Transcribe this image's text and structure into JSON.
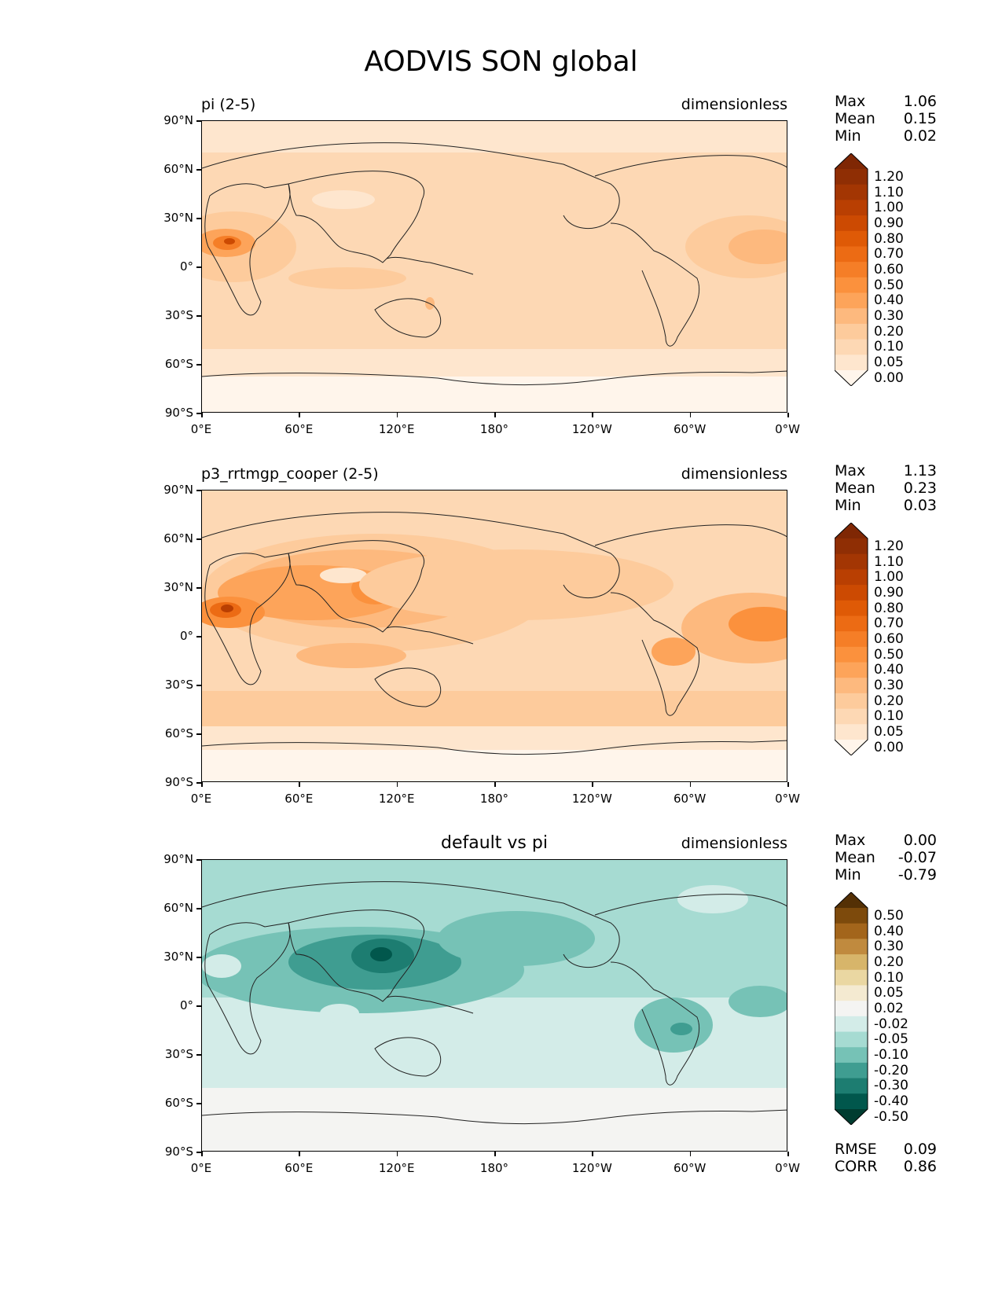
{
  "title": "AODVIS SON global",
  "panels": [
    {
      "label_left": "pi (2-5)",
      "label_center": "",
      "label_right": "dimensionless",
      "stats": [
        {
          "name": "Max",
          "value": "1.06"
        },
        {
          "name": "Mean",
          "value": "0.15"
        },
        {
          "name": "Min",
          "value": "0.02"
        }
      ],
      "colorbar": {
        "labels": [
          "1.20",
          "1.10",
          "1.00",
          "0.90",
          "0.80",
          "0.70",
          "0.60",
          "0.50",
          "0.40",
          "0.30",
          "0.20",
          "0.10",
          "0.05",
          "0.00"
        ],
        "colors": [
          "#7f2704",
          "#8f2e04",
          "#a33603",
          "#b93f02",
          "#cc4a02",
          "#df5a06",
          "#ec6b14",
          "#f57e27",
          "#fb913d",
          "#fda45a",
          "#fdb97e",
          "#fdcb9c",
          "#fdd8b4",
          "#fee6ce",
          "#fff5eb"
        ]
      },
      "bottom_stats": []
    },
    {
      "label_left": "p3_rrtmgp_cooper (2-5)",
      "label_center": "",
      "label_right": "dimensionless",
      "stats": [
        {
          "name": "Max",
          "value": "1.13"
        },
        {
          "name": "Mean",
          "value": "0.23"
        },
        {
          "name": "Min",
          "value": "0.03"
        }
      ],
      "colorbar": {
        "labels": [
          "1.20",
          "1.10",
          "1.00",
          "0.90",
          "0.80",
          "0.70",
          "0.60",
          "0.50",
          "0.40",
          "0.30",
          "0.20",
          "0.10",
          "0.05",
          "0.00"
        ],
        "colors": [
          "#7f2704",
          "#8f2e04",
          "#a33603",
          "#b93f02",
          "#cc4a02",
          "#df5a06",
          "#ec6b14",
          "#f57e27",
          "#fb913d",
          "#fda45a",
          "#fdb97e",
          "#fdcb9c",
          "#fdd8b4",
          "#fee6ce",
          "#fff5eb"
        ]
      },
      "bottom_stats": []
    },
    {
      "label_left": "",
      "label_center": "default vs pi",
      "label_right": "dimensionless",
      "stats": [
        {
          "name": "Max",
          "value": "0.00"
        },
        {
          "name": "Mean",
          "value": "-0.07"
        },
        {
          "name": "Min",
          "value": "-0.79"
        }
      ],
      "colorbar": {
        "labels": [
          "0.50",
          "0.40",
          "0.30",
          "0.20",
          "0.10",
          "0.05",
          "0.02",
          "-0.02",
          "-0.05",
          "-0.10",
          "-0.20",
          "-0.30",
          "-0.40",
          "-0.50"
        ],
        "colors": [
          "#543005",
          "#7d4a0c",
          "#a3651b",
          "#c08a3e",
          "#d7b56a",
          "#ead7a2",
          "#f4ead1",
          "#f4f4f2",
          "#d3ece8",
          "#a6dbd2",
          "#76c2b6",
          "#3f9d91",
          "#1d7d71",
          "#01574c",
          "#003c30"
        ]
      },
      "bottom_stats": [
        {
          "name": "RMSE",
          "value": "0.09"
        },
        {
          "name": "CORR",
          "value": "0.86"
        }
      ]
    }
  ],
  "lat_labels": [
    "90°N",
    "60°N",
    "30°N",
    "0°",
    "30°S",
    "60°S",
    "90°S"
  ],
  "lon_labels": [
    "0°E",
    "60°E",
    "120°E",
    "180°",
    "120°W",
    "60°W",
    "0°W"
  ],
  "chart_data": [
    {
      "type": "heatmap",
      "title": "pi (2-5)",
      "units": "dimensionless",
      "x_range": [
        "0°E",
        "0°W"
      ],
      "y_range": [
        "90°S",
        "90°N"
      ],
      "max": 1.06,
      "mean": 0.15,
      "min": 0.02,
      "levels": [
        0.0,
        0.05,
        0.1,
        0.2,
        0.3,
        0.4,
        0.5,
        0.6,
        0.7,
        0.8,
        0.9,
        1.0,
        1.1,
        1.2
      ]
    },
    {
      "type": "heatmap",
      "title": "p3_rrtmgp_cooper (2-5)",
      "units": "dimensionless",
      "x_range": [
        "0°E",
        "0°W"
      ],
      "y_range": [
        "90°S",
        "90°N"
      ],
      "max": 1.13,
      "mean": 0.23,
      "min": 0.03,
      "levels": [
        0.0,
        0.05,
        0.1,
        0.2,
        0.3,
        0.4,
        0.5,
        0.6,
        0.7,
        0.8,
        0.9,
        1.0,
        1.1,
        1.2
      ]
    },
    {
      "type": "heatmap",
      "title": "default vs pi",
      "units": "dimensionless",
      "x_range": [
        "0°E",
        "0°W"
      ],
      "y_range": [
        "90°S",
        "90°N"
      ],
      "max": 0.0,
      "mean": -0.07,
      "min": -0.79,
      "rmse": 0.09,
      "corr": 0.86,
      "levels": [
        -0.5,
        -0.4,
        -0.3,
        -0.2,
        -0.1,
        -0.05,
        -0.02,
        0.02,
        0.05,
        0.1,
        0.2,
        0.3,
        0.4,
        0.5
      ]
    }
  ]
}
